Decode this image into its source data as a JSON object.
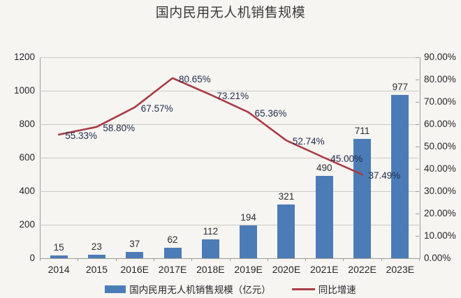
{
  "page": {
    "title": "国内民用无人机销售规模",
    "background": "#f7f5f1"
  },
  "chart_data": {
    "type": "bar",
    "title": "国内民用无人机销售规模",
    "categories": [
      "2014",
      "2015",
      "2016E",
      "2017E",
      "2018E",
      "2019E",
      "2020E",
      "2021E",
      "2022E",
      "2023E"
    ],
    "series": [
      {
        "name": "国内民用无人机销售规模（亿元）",
        "type": "bar",
        "axis": "left",
        "color": "#4b7cb7",
        "values": [
          15,
          23,
          37,
          62,
          112,
          194,
          321,
          490,
          711,
          977
        ]
      },
      {
        "name": "同比增速",
        "type": "line",
        "axis": "right",
        "color": "#a83b45",
        "values": [
          55.33,
          58.8,
          67.57,
          80.65,
          73.21,
          65.36,
          52.74,
          45.0,
          37.49
        ],
        "value_labels": [
          "55.33%",
          "58.80%",
          "67.57%",
          "80.65%",
          "73.21%",
          "65.36%",
          "52.74%",
          "45.00%",
          "37.49%"
        ]
      }
    ],
    "left_axis": {
      "min": 0,
      "max": 1200,
      "step": 200,
      "ticks": [
        "0",
        "200",
        "400",
        "600",
        "800",
        "1000",
        "1200"
      ]
    },
    "right_axis": {
      "min": 0,
      "max": 90,
      "step": 10,
      "ticks": [
        "0.00%",
        "10.00%",
        "20.00%",
        "30.00%",
        "40.00%",
        "50.00%",
        "60.00%",
        "70.00%",
        "80.00%",
        "90.00%"
      ]
    },
    "xlabel": "",
    "ylabel": "",
    "grid": true,
    "legend_position": "bottom"
  }
}
